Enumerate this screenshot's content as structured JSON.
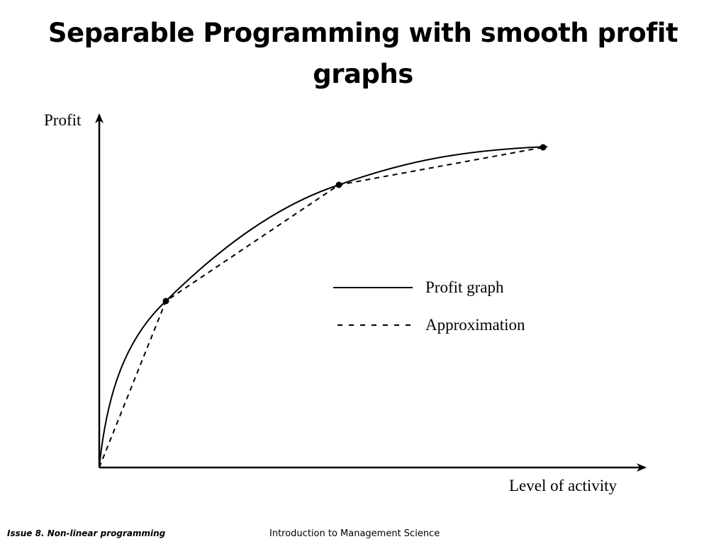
{
  "slide": {
    "title": "Separable Programming with smooth profit graphs"
  },
  "diagram": {
    "y_axis_label": "Profit",
    "x_axis_label": "Level of activity",
    "legend": {
      "solid_label": "Profit graph",
      "dashed_label": "Approximation"
    }
  },
  "footer": {
    "left": "Issue 8. Non-linear programming",
    "center": "Introduction to Management Science"
  }
}
